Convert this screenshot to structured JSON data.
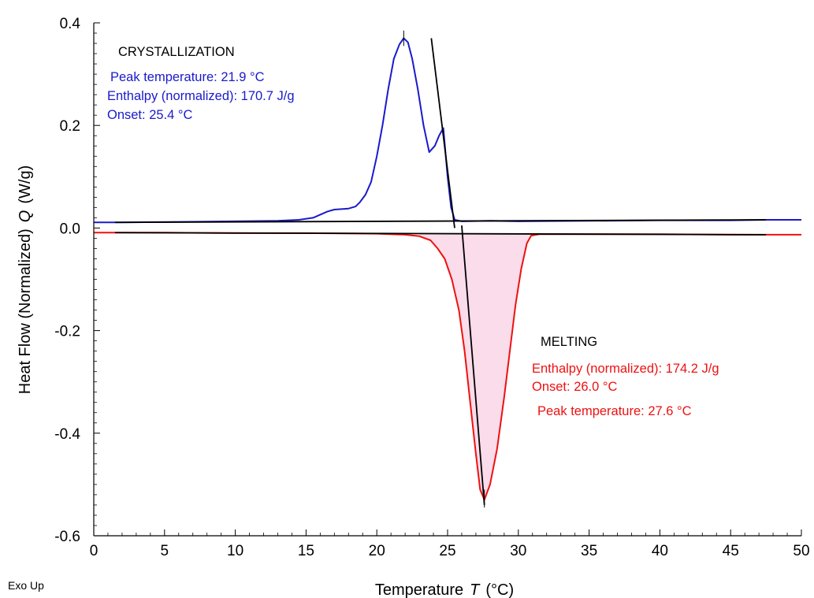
{
  "chart_data": {
    "type": "line",
    "xlabel_prefix": "Temperature",
    "xlabel_symbol": "T",
    "xlabel_unit": "(°C)",
    "ylabel_prefix": "Heat Flow (Normalized)",
    "ylabel_symbol": "Q",
    "ylabel_unit": "(W/g)",
    "xlim": [
      0,
      50
    ],
    "ylim": [
      -0.6,
      0.4
    ],
    "x_ticks": [
      0,
      5,
      10,
      15,
      20,
      25,
      30,
      35,
      40,
      45,
      50
    ],
    "y_ticks": [
      "-0.6",
      "-0.4",
      "-0.2",
      "0.0",
      "0.2",
      "0.4"
    ],
    "grid": false,
    "series": [
      {
        "color": "#1a1acc",
        "points": [
          [
            0,
            0.011
          ],
          [
            2,
            0.011
          ],
          [
            6,
            0.012
          ],
          [
            10,
            0.013
          ],
          [
            13,
            0.014
          ],
          [
            14.5,
            0.016
          ],
          [
            15.5,
            0.02
          ],
          [
            16.5,
            0.032
          ],
          [
            17,
            0.036
          ],
          [
            17.6,
            0.037
          ],
          [
            18,
            0.038
          ],
          [
            18.5,
            0.042
          ],
          [
            18.8,
            0.05
          ],
          [
            19.2,
            0.065
          ],
          [
            19.6,
            0.09
          ],
          [
            20,
            0.14
          ],
          [
            20.4,
            0.2
          ],
          [
            20.8,
            0.27
          ],
          [
            21.2,
            0.33
          ],
          [
            21.6,
            0.358
          ],
          [
            21.9,
            0.37
          ],
          [
            22.2,
            0.362
          ],
          [
            22.5,
            0.33
          ],
          [
            22.9,
            0.27
          ],
          [
            23.3,
            0.2
          ],
          [
            23.7,
            0.148
          ],
          [
            24.1,
            0.16
          ],
          [
            24.4,
            0.18
          ],
          [
            24.7,
            0.195
          ],
          [
            25.0,
            0.1
          ],
          [
            25.25,
            0.04
          ],
          [
            25.5,
            0.016
          ],
          [
            26,
            0.013
          ],
          [
            28,
            0.014
          ],
          [
            30,
            0.013
          ],
          [
            35,
            0.014
          ],
          [
            40,
            0.015
          ],
          [
            45,
            0.015
          ],
          [
            47.5,
            0.016
          ],
          [
            50,
            0.016
          ]
        ]
      },
      {
        "color": "#ee1111",
        "points": [
          [
            0,
            -0.009
          ],
          [
            5,
            -0.009
          ],
          [
            10,
            -0.01
          ],
          [
            15,
            -0.01
          ],
          [
            20,
            -0.011
          ],
          [
            22,
            -0.013
          ],
          [
            23,
            -0.016
          ],
          [
            23.8,
            -0.024
          ],
          [
            24.3,
            -0.04
          ],
          [
            24.8,
            -0.06
          ],
          [
            25.3,
            -0.1
          ],
          [
            25.8,
            -0.16
          ],
          [
            26.2,
            -0.24
          ],
          [
            26.6,
            -0.34
          ],
          [
            27.0,
            -0.44
          ],
          [
            27.3,
            -0.51
          ],
          [
            27.6,
            -0.53
          ],
          [
            28,
            -0.5
          ],
          [
            28.5,
            -0.43
          ],
          [
            29.0,
            -0.33
          ],
          [
            29.4,
            -0.24
          ],
          [
            29.8,
            -0.15
          ],
          [
            30.2,
            -0.08
          ],
          [
            30.6,
            -0.03
          ],
          [
            30.9,
            -0.015
          ],
          [
            31.5,
            -0.012
          ],
          [
            35,
            -0.012
          ],
          [
            40,
            -0.012
          ],
          [
            45,
            -0.013
          ],
          [
            47.5,
            -0.013
          ],
          [
            50,
            -0.013
          ]
        ]
      }
    ],
    "fill_color": "#fadcea",
    "baselines": [
      {
        "x": [
          1.5,
          47.5
        ],
        "y": [
          0.011,
          0.016
        ]
      },
      {
        "x": [
          1.5,
          47.5
        ],
        "y": [
          -0.009,
          -0.013
        ]
      }
    ],
    "tangents": [
      {
        "x": [
          23.85,
          25.5
        ],
        "y": [
          0.37,
          0.0
        ]
      },
      {
        "x": [
          26.0,
          27.6
        ],
        "y": [
          0.005,
          -0.54
        ]
      }
    ],
    "peak_marks": [
      {
        "x": 21.9,
        "y1": 0.355,
        "y2": 0.385
      },
      {
        "x": 27.6,
        "y1": -0.51,
        "y2": -0.545
      }
    ],
    "annotations": {
      "cryst_title": "CRYSTALLIZATION",
      "cryst_peak": "Peak temperature: 21.9 °C",
      "cryst_enthalpy": "Enthalpy (normalized): 170.7 J/g",
      "cryst_onset": "Onset: 25.4 °C",
      "melt_title": "MELTING",
      "melt_enthalpy": "Enthalpy (normalized): 174.2 J/g",
      "melt_onset": "Onset: 26.0 °C",
      "melt_peak": "Peak temperature: 27.6 °C"
    },
    "annotation_colors": {
      "black": "#000000",
      "blue": "#1a1acc",
      "red": "#ee1111"
    }
  },
  "footer": {
    "exo_label": "Exo Up"
  }
}
